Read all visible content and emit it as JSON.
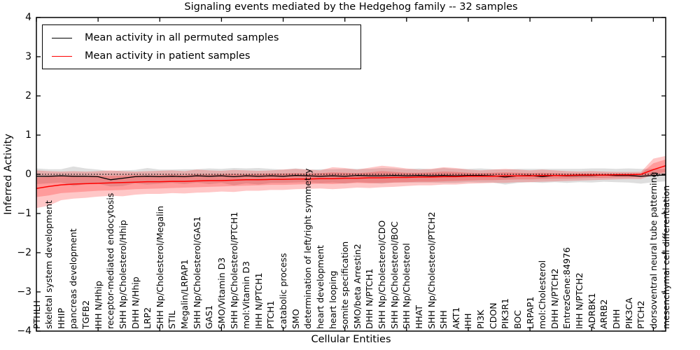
{
  "chart": {
    "title": "Signaling events mediated by the Hedgehog family -- 32 samples",
    "xlabel": "Cellular Entities",
    "ylabel": "Inferred Activity"
  },
  "legend": {
    "items": [
      {
        "label": "Mean activity in all permuted samples",
        "color": "#000000"
      },
      {
        "label": "Mean activity in patient samples",
        "color": "#ff0000"
      }
    ]
  },
  "chart_data": {
    "type": "line",
    "title": "Signaling events mediated by the Hedgehog family -- 32 samples",
    "xlabel": "Cellular Entities",
    "ylabel": "Inferred Activity",
    "ylim": [
      -4,
      4
    ],
    "y_ticks": [
      4,
      3,
      2,
      1,
      0,
      -1,
      -2,
      -3,
      -4
    ],
    "y_tick_labels": [
      "4",
      "3",
      "2",
      "1",
      "0",
      "−1",
      "−2",
      "−3",
      "−4"
    ],
    "x_tick_every": 5,
    "reference_line_y": 0,
    "grid": false,
    "legend_position": "upper left",
    "categories": [
      "PTHLH",
      "skeletal system development",
      "HHIP",
      "pancreas development",
      "TGFB2",
      "IHH N/Hhip",
      "receptor-mediated endocytosis",
      "SHH Np/Cholesterol/Hhip",
      "DHH N/Hhip",
      "LRP2",
      "SHH Np/Cholesterol/Megalin",
      "STIL",
      "Megalin/LRPAP1",
      "SHH Np/Cholesterol/GAS1",
      "GAS1",
      "SMO/Vitamin D3",
      "SHH Np/Cholesterol/PTCH1",
      "mol:Vitamin D3",
      "IHH N/PTCH1",
      "PTCH1",
      "catabolic process",
      "SMO",
      "determination of left/right symmetry",
      "heart development",
      "heart looping",
      "somite specification",
      "SMO/beta Arrestin2",
      "DHH N/PTCH1",
      "SHH Np/Cholesterol/CDO",
      "SHH Np/Cholesterol/BOC",
      "SHH Np/Cholesterol",
      "HHAT",
      "SHH Np/Cholesterol/PTCH2",
      "SHH",
      "AKT1",
      "IHH",
      "PI3K",
      "CDON",
      "PIK3R1",
      "BOC",
      "LRPAP1",
      "mol:Cholesterol",
      "DHH N/PTCH2",
      "EntrezGene:84976",
      "IHH N/PTCH2",
      "ADRBK1",
      "ARRB2",
      "DHH",
      "PIK3CA",
      "PTCH2",
      "dorsoventral neural tube patterning",
      "mesenchymal cell differentiation"
    ],
    "series": [
      {
        "name": "Mean activity in all permuted samples",
        "color": "#000000",
        "values": [
          -0.05,
          -0.05,
          -0.04,
          -0.05,
          -0.05,
          -0.06,
          -0.14,
          -0.1,
          -0.06,
          -0.05,
          -0.06,
          -0.05,
          -0.06,
          -0.04,
          -0.05,
          -0.04,
          -0.06,
          -0.04,
          -0.05,
          -0.04,
          -0.05,
          -0.03,
          -0.04,
          -0.05,
          -0.04,
          -0.05,
          -0.03,
          -0.04,
          -0.04,
          -0.03,
          -0.04,
          -0.03,
          -0.04,
          -0.03,
          -0.04,
          -0.03,
          -0.03,
          -0.04,
          -0.07,
          -0.04,
          -0.03,
          -0.06,
          -0.03,
          -0.04,
          -0.03,
          -0.03,
          -0.02,
          -0.03,
          -0.03,
          -0.05,
          -0.03,
          -0.02
        ]
      },
      {
        "name": "Mean activity in patient samples",
        "color": "#ff0000",
        "values": [
          -0.36,
          -0.31,
          -0.27,
          -0.25,
          -0.24,
          -0.23,
          -0.22,
          -0.21,
          -0.2,
          -0.19,
          -0.19,
          -0.18,
          -0.18,
          -0.17,
          -0.16,
          -0.16,
          -0.15,
          -0.14,
          -0.14,
          -0.13,
          -0.13,
          -0.12,
          -0.12,
          -0.11,
          -0.11,
          -0.1,
          -0.1,
          -0.09,
          -0.09,
          -0.08,
          -0.08,
          -0.07,
          -0.07,
          -0.06,
          -0.06,
          -0.05,
          -0.05,
          -0.05,
          -0.04,
          -0.04,
          -0.04,
          -0.03,
          -0.03,
          -0.03,
          -0.02,
          -0.02,
          -0.02,
          -0.01,
          -0.01,
          0.0,
          0.12,
          0.22
        ]
      }
    ],
    "bands": [
      {
        "name": "permuted-sample-range",
        "color": "#bdbdbd",
        "opacity": 0.5,
        "top": [
          0.15,
          0.13,
          0.13,
          0.2,
          0.15,
          0.12,
          0.08,
          0.1,
          0.11,
          0.16,
          0.12,
          0.12,
          0.13,
          0.13,
          0.15,
          0.14,
          0.16,
          0.15,
          0.16,
          0.14,
          0.12,
          0.15,
          0.12,
          0.13,
          0.13,
          0.14,
          0.14,
          0.14,
          0.16,
          0.15,
          0.13,
          0.15,
          0.13,
          0.16,
          0.14,
          0.14,
          0.15,
          0.13,
          0.12,
          0.14,
          0.14,
          0.14,
          0.14,
          0.14,
          0.14,
          0.15,
          0.15,
          0.14,
          0.15,
          0.14,
          0.14,
          0.14
        ],
        "bottom": [
          -0.25,
          -0.23,
          -0.21,
          -0.3,
          -0.25,
          -0.24,
          -0.31,
          -0.3,
          -0.23,
          -0.26,
          -0.24,
          -0.22,
          -0.25,
          -0.21,
          -0.25,
          -0.22,
          -0.28,
          -0.23,
          -0.26,
          -0.22,
          -0.22,
          -0.21,
          -0.2,
          -0.23,
          -0.21,
          -0.24,
          -0.2,
          -0.22,
          -0.24,
          -0.21,
          -0.21,
          -0.21,
          -0.21,
          -0.22,
          -0.22,
          -0.2,
          -0.21,
          -0.21,
          -0.26,
          -0.22,
          -0.2,
          -0.22,
          -0.2,
          -0.22,
          -0.2,
          -0.21,
          -0.19,
          -0.2,
          -0.21,
          -0.24,
          -0.2,
          -0.18
        ]
      },
      {
        "name": "patient-sample-range-outer",
        "color": "#ff0000",
        "opacity": 0.22,
        "top": [
          0.1,
          0.08,
          0.07,
          0.08,
          0.07,
          0.08,
          0.1,
          0.08,
          0.07,
          0.08,
          0.09,
          0.1,
          0.08,
          0.12,
          0.1,
          0.09,
          0.11,
          0.1,
          0.09,
          0.1,
          0.12,
          0.14,
          0.12,
          0.1,
          0.18,
          0.16,
          0.12,
          0.17,
          0.22,
          0.19,
          0.15,
          0.12,
          0.14,
          0.18,
          0.16,
          0.12,
          0.1,
          0.12,
          0.14,
          0.12,
          0.1,
          0.12,
          0.1,
          0.08,
          0.07,
          0.08,
          0.07,
          0.06,
          0.06,
          0.06,
          0.4,
          0.47
        ],
        "bottom": [
          -0.86,
          -0.8,
          -0.66,
          -0.62,
          -0.6,
          -0.57,
          -0.55,
          -0.56,
          -0.52,
          -0.5,
          -0.5,
          -0.48,
          -0.49,
          -0.47,
          -0.46,
          -0.44,
          -0.45,
          -0.42,
          -0.42,
          -0.4,
          -0.4,
          -0.38,
          -0.37,
          -0.36,
          -0.38,
          -0.36,
          -0.34,
          -0.35,
          -0.33,
          -0.32,
          -0.3,
          -0.28,
          -0.28,
          -0.26,
          -0.26,
          -0.24,
          -0.23,
          -0.22,
          -0.22,
          -0.2,
          -0.2,
          -0.19,
          -0.18,
          -0.17,
          -0.16,
          -0.15,
          -0.14,
          -0.13,
          -0.12,
          -0.12,
          -0.02,
          0.02
        ]
      },
      {
        "name": "patient-sample-range-inner",
        "color": "#ff0000",
        "opacity": 0.22,
        "top": [
          -0.08,
          -0.06,
          -0.04,
          -0.03,
          -0.04,
          -0.03,
          -0.04,
          -0.03,
          -0.02,
          -0.03,
          -0.02,
          -0.01,
          -0.02,
          0.0,
          -0.01,
          0.0,
          0.01,
          0.0,
          0.01,
          0.02,
          0.02,
          0.03,
          0.02,
          0.03,
          0.05,
          0.04,
          0.03,
          0.05,
          0.08,
          0.06,
          0.04,
          0.04,
          0.05,
          0.07,
          0.06,
          0.04,
          0.03,
          0.04,
          0.05,
          0.04,
          0.03,
          0.04,
          0.03,
          0.02,
          0.02,
          0.02,
          0.02,
          0.02,
          0.02,
          0.02,
          0.28,
          0.38
        ],
        "bottom": [
          -0.58,
          -0.54,
          -0.48,
          -0.46,
          -0.44,
          -0.42,
          -0.41,
          -0.4,
          -0.38,
          -0.37,
          -0.36,
          -0.35,
          -0.34,
          -0.33,
          -0.32,
          -0.31,
          -0.3,
          -0.29,
          -0.28,
          -0.27,
          -0.27,
          -0.26,
          -0.25,
          -0.24,
          -0.25,
          -0.23,
          -0.22,
          -0.23,
          -0.22,
          -0.21,
          -0.2,
          -0.19,
          -0.19,
          -0.18,
          -0.17,
          -0.16,
          -0.15,
          -0.15,
          -0.14,
          -0.13,
          -0.13,
          -0.12,
          -0.11,
          -0.11,
          -0.1,
          -0.09,
          -0.09,
          -0.08,
          -0.08,
          -0.07,
          0.0,
          0.06
        ]
      }
    ]
  }
}
